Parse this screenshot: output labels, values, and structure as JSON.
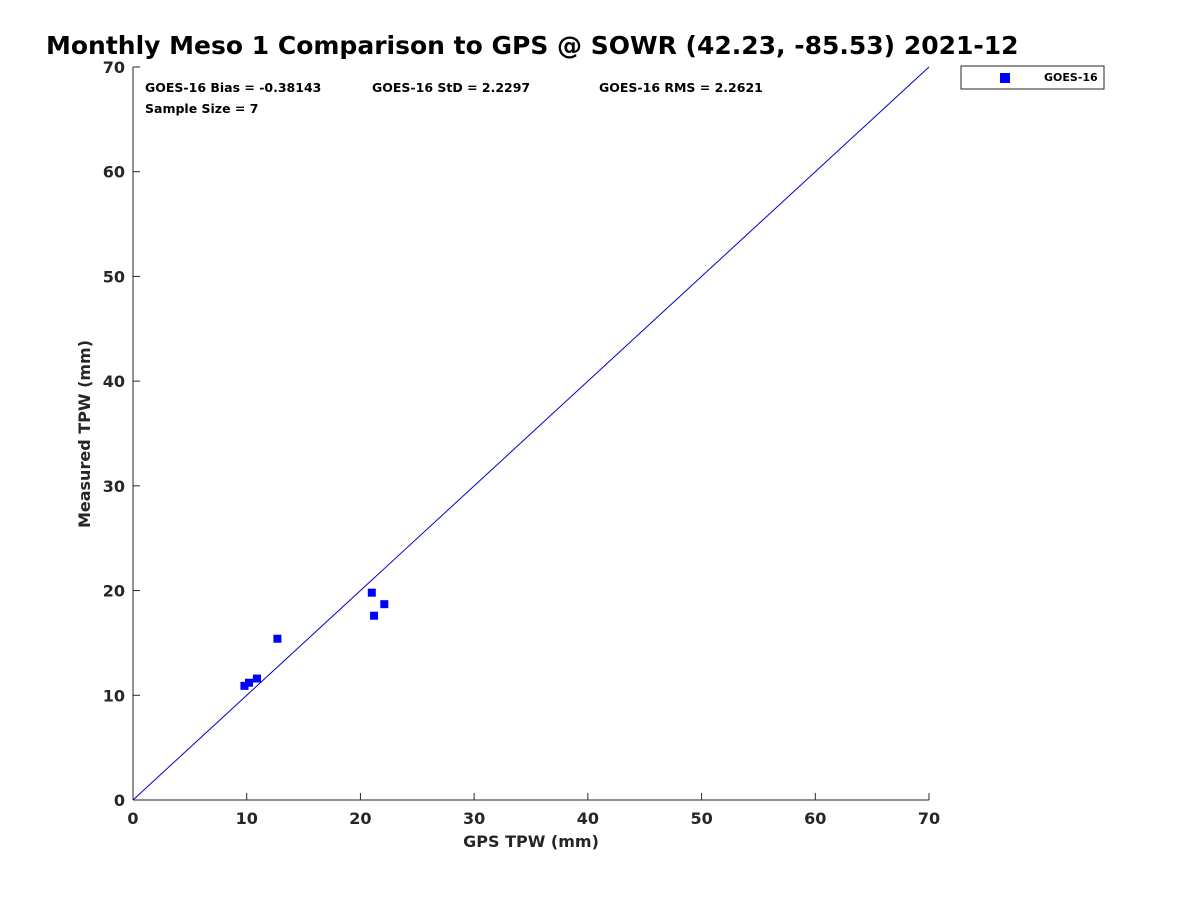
{
  "colors": {
    "series": "#0000ff",
    "reference_line": "#0000cc",
    "axis": "#262626"
  },
  "chart_data": {
    "type": "scatter",
    "title": "Monthly Meso 1 Comparison to GPS @ SOWR (42.23, -85.53) 2021-12",
    "xlabel": "GPS TPW (mm)",
    "ylabel": "Measured TPW (mm)",
    "xlim": [
      0,
      70
    ],
    "ylim": [
      0,
      70
    ],
    "xticks": [
      "0",
      "10",
      "20",
      "30",
      "40",
      "50",
      "60",
      "70"
    ],
    "yticks": [
      "0",
      "10",
      "20",
      "30",
      "40",
      "50",
      "60",
      "70"
    ],
    "grid": false,
    "legend_position": "outside-top-right",
    "reference_line": {
      "x": [
        0,
        70
      ],
      "y": [
        0,
        70
      ]
    },
    "stats": {
      "bias": "GOES-16 Bias = -0.38143",
      "std": "GOES-16 StD = 2.2297",
      "rms": "GOES-16 RMS = 2.2621",
      "sample_size": "Sample Size = 7"
    },
    "series": [
      {
        "name": "GOES-16",
        "marker": "square",
        "points": [
          {
            "x": 9.8,
            "y": 10.9
          },
          {
            "x": 10.2,
            "y": 11.2
          },
          {
            "x": 10.9,
            "y": 11.6
          },
          {
            "x": 12.7,
            "y": 15.4
          },
          {
            "x": 21.0,
            "y": 19.8
          },
          {
            "x": 21.2,
            "y": 17.6
          },
          {
            "x": 22.1,
            "y": 18.7
          }
        ]
      }
    ]
  }
}
